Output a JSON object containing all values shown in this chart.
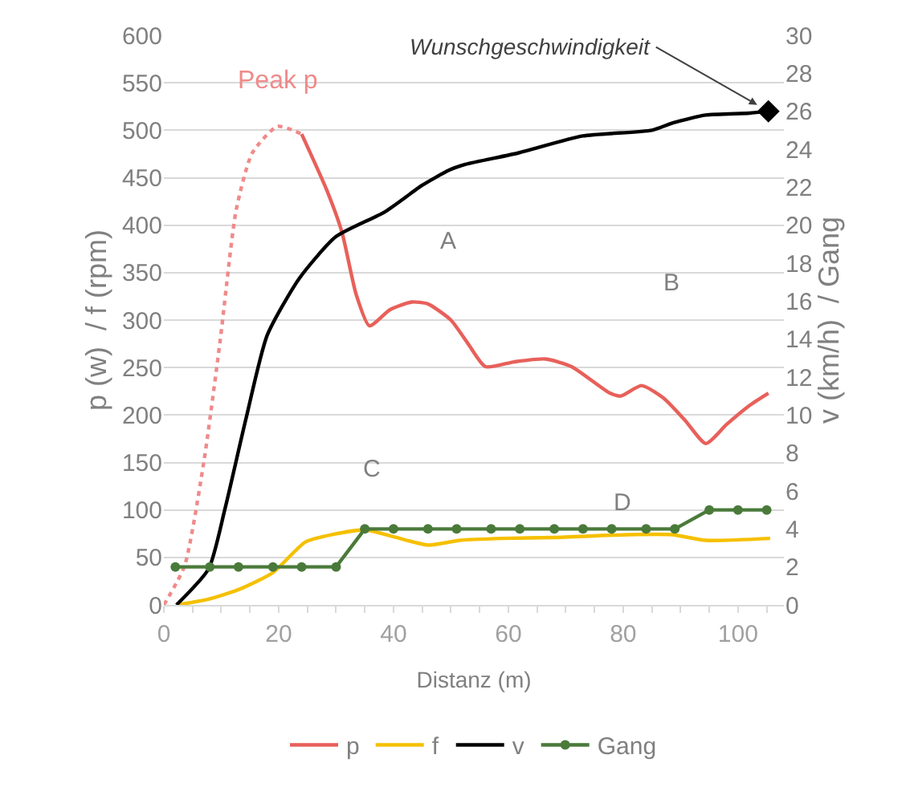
{
  "chart_data": {
    "type": "line",
    "xlabel": "Distanz (m)",
    "ylabel": "p (w)  / f (rpm)",
    "y2label": "v (km/h)  / Gang",
    "xlim": [
      0,
      108
    ],
    "xticks": [
      0,
      20,
      40,
      60,
      80,
      100
    ],
    "ylim": [
      0,
      600
    ],
    "yticks": [
      0,
      50,
      100,
      150,
      200,
      250,
      300,
      350,
      400,
      450,
      500,
      550,
      600
    ],
    "y2lim": [
      0,
      30
    ],
    "y2ticks": [
      0,
      2,
      4,
      6,
      8,
      10,
      12,
      14,
      16,
      18,
      20,
      22,
      24,
      26,
      28,
      30
    ],
    "grid": "y",
    "legend": "bottom",
    "series": [
      {
        "name": "p",
        "color": "#e8605a",
        "x": [
          24,
          28.3,
          31,
          33.5,
          35.8,
          39.4,
          43.2,
          46,
          50,
          53,
          56,
          61,
          66.5,
          71,
          77.7,
          79.6,
          83.2,
          87,
          90.7,
          94.4,
          98,
          102,
          105.3
        ],
        "values": [
          496,
          438,
          393,
          327,
          294,
          311,
          319,
          317,
          300,
          275,
          251,
          256,
          259,
          251,
          223,
          220,
          231,
          218,
          195,
          170,
          190,
          210,
          223
        ]
      },
      {
        "color": "#f08a8a",
        "line_style": "dotted",
        "x": [
          0,
          3.6,
          7,
          9.8,
          12.6,
          15.4,
          19.8,
          24
        ],
        "values": [
          0,
          41,
          152,
          278,
          416,
          476,
          504,
          496
        ]
      },
      {
        "name": "f",
        "color": "#f5c000",
        "x": [
          2.3,
          7.8,
          13.4,
          19,
          24.6,
          29.3,
          35,
          40.5,
          46,
          51.6,
          59,
          68,
          81,
          88.5,
          94.4,
          105.6
        ],
        "values": [
          0,
          6,
          17,
          34,
          66,
          74,
          79,
          71,
          63,
          68,
          70,
          71,
          74,
          74,
          68,
          70
        ]
      },
      {
        "name": "v",
        "color": "#000000",
        "axis": "y2",
        "x": [
          2.2,
          7.8,
          10.6,
          14.3,
          18,
          23.6,
          30,
          38.5,
          45,
          49.7,
          52.5,
          61.7,
          73,
          85,
          88.8,
          94.4,
          102,
          105.3
        ],
        "values": [
          0,
          1.9,
          5,
          9.8,
          14.2,
          17.2,
          19.4,
          20.7,
          22.1,
          22.9,
          23.2,
          23.8,
          24.7,
          25,
          25.4,
          25.8,
          25.9,
          26
        ]
      },
      {
        "name": "Gang",
        "color": "#4a7a3a",
        "axis": "y2",
        "marker": "circle",
        "x": [
          2,
          8,
          13,
          19,
          24,
          30,
          35,
          40,
          46,
          51,
          57,
          62,
          68,
          73,
          78,
          84,
          89,
          95,
          100,
          105
        ],
        "values": [
          2,
          2,
          2,
          2,
          2,
          2,
          4,
          4,
          4,
          4,
          4,
          4,
          4,
          4,
          4,
          4,
          4,
          5,
          5,
          5
        ]
      }
    ],
    "annotations": [
      {
        "text": "Peak p",
        "x": 20,
        "y": 504
      },
      {
        "text": "Wunschgeschwindigkeit",
        "x": 105.3,
        "y": 520
      },
      "A",
      "B",
      "C",
      "D"
    ]
  }
}
